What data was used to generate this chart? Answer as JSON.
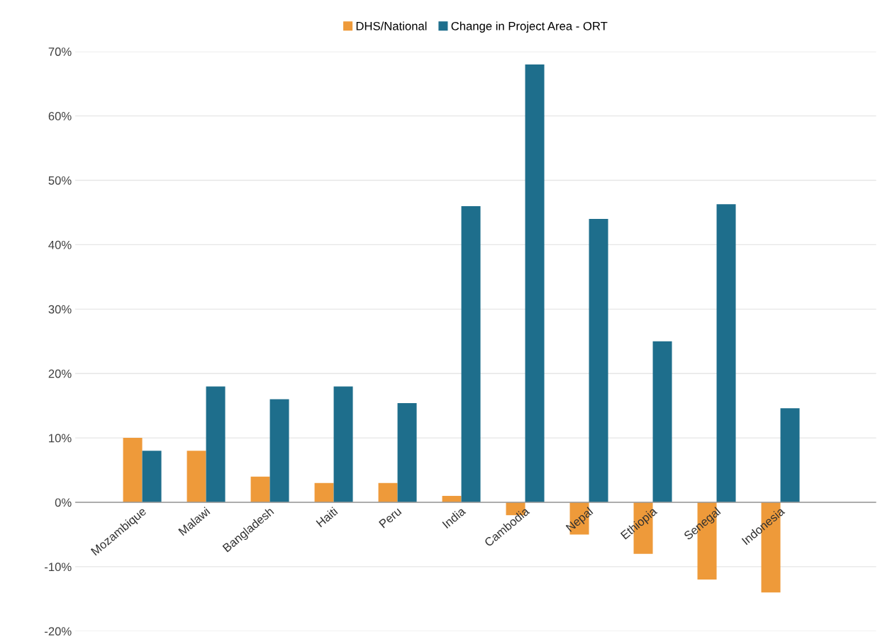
{
  "chart_data": {
    "type": "bar",
    "categories": [
      "Mozambique",
      "Malawi",
      "Bangladesh",
      "Haiti",
      "Peru",
      "India",
      "Cambodia",
      "Nepal",
      "Ethiopia",
      "Senegal",
      "Indonesia"
    ],
    "series": [
      {
        "name": "DHS/National",
        "color": "#ee9a3a",
        "values": [
          10,
          8,
          4,
          3,
          3,
          1,
          -2,
          -5,
          -8,
          -12,
          -14
        ]
      },
      {
        "name": "Change in Project Area - ORT",
        "color": "#1e6e8c",
        "values": [
          8,
          18,
          16,
          18,
          15.4,
          46,
          68,
          44,
          25,
          46.3,
          14.6
        ]
      }
    ],
    "ylim": [
      -20,
      70
    ],
    "yticks": [
      {
        "value": -20,
        "label": "-20%"
      },
      {
        "value": -10,
        "label": "-10%"
      },
      {
        "value": 0,
        "label": "0%"
      },
      {
        "value": 10,
        "label": "10%"
      },
      {
        "value": 20,
        "label": "20%"
      },
      {
        "value": 30,
        "label": "30%"
      },
      {
        "value": 40,
        "label": "40%"
      },
      {
        "value": 50,
        "label": "50%"
      },
      {
        "value": 60,
        "label": "60%"
      },
      {
        "value": 70,
        "label": "70%"
      }
    ],
    "grid": "y",
    "legend": "top"
  }
}
